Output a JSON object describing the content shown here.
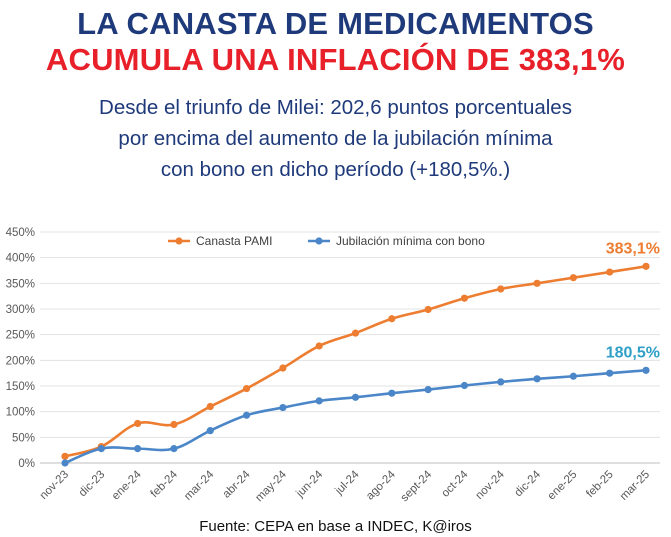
{
  "header": {
    "title_line1": "LA CANASTA DE MEDICAMENTOS",
    "title_line2": "ACUMULA UNA INFLACIÓN DE 383,1%",
    "subtitle_lines": [
      "Desde el triunfo de Milei: 202,6 puntos porcentuales",
      "por encima del aumento de la jubilación mínima",
      "con bono en dicho período (+180,5%.)"
    ]
  },
  "footer": {
    "source": "Fuente: CEPA en base a INDEC, K@iros"
  },
  "colors": {
    "title_blue": "#1f3a7a",
    "title_red": "#e8202a",
    "series_orange": "#ed7d31",
    "series_blue": "#4a86c8",
    "label_blue": "#2ea0c8"
  },
  "chart_data": {
    "type": "line",
    "x": [
      "nov-23",
      "dic-23",
      "ene-24",
      "feb-24",
      "mar-24",
      "abr-24",
      "may-24",
      "jun-24",
      "jul-24",
      "ago-24",
      "sept-24",
      "oct-24",
      "nov-24",
      "dic-24",
      "ene-25",
      "feb-25",
      "mar-25"
    ],
    "ylim": [
      0,
      450
    ],
    "yticks": [
      "0%",
      "50%",
      "100%",
      "150%",
      "200%",
      "250%",
      "300%",
      "350%",
      "400%",
      "450%"
    ],
    "grid": "horizontal",
    "legend_position": "top",
    "series": [
      {
        "name": "Canasta PAMI",
        "color": "#ed7d31",
        "values": [
          13,
          32,
          77,
          75,
          110,
          145,
          185,
          228,
          253,
          281,
          299,
          321,
          339,
          350,
          361,
          372,
          383.1
        ],
        "end_label": "383,1%"
      },
      {
        "name": "Jubilación mínima con bono",
        "color": "#4a86c8",
        "values": [
          0,
          28,
          28,
          28,
          63,
          93,
          108,
          121,
          128,
          136,
          143,
          151,
          158,
          164,
          169,
          175,
          180.5
        ],
        "end_label": "180,5%"
      }
    ]
  }
}
